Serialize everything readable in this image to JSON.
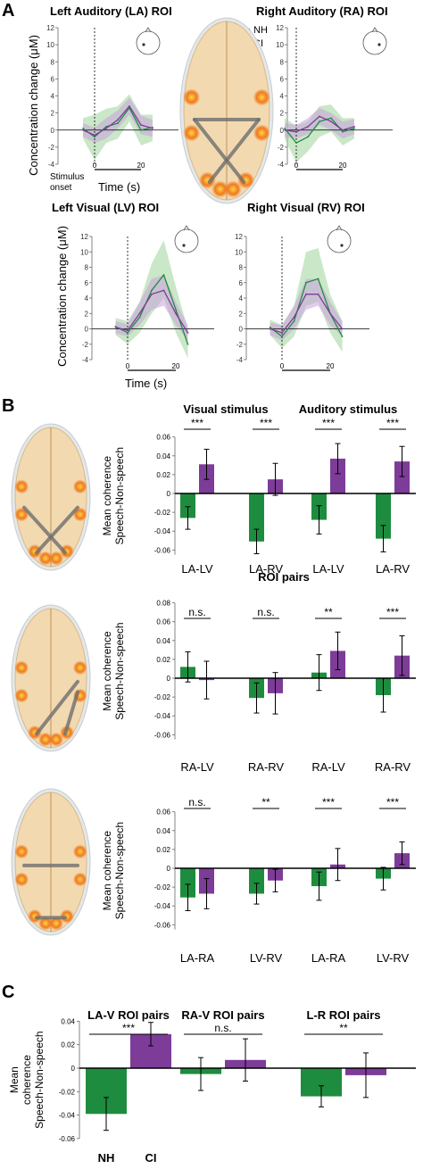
{
  "panel_labels": {
    "a": "A",
    "b": "B",
    "c": "C"
  },
  "colors": {
    "nh": "#1e8c3e",
    "ci": "#7d3c98",
    "nh_band": "#9fd39a",
    "ci_band": "#c9a3dd",
    "mean_band": "#9a9a9a",
    "brain": "#f2d9b0",
    "hotspot": "#f07a1e"
  },
  "icons": [
    "brain-render-icon",
    "head-sensor-icon"
  ],
  "panelA": {
    "ylabel": "Concentration change (μM)",
    "xlabel": "Time (s)",
    "stim_label_1": "Stimulus",
    "stim_label_2": "onset",
    "legend": {
      "nh": "NH",
      "ci": "CI"
    },
    "plots": [
      {
        "title": "Left Auditory (LA) ROI",
        "yticks": [
          "12",
          "10",
          "8",
          "6",
          "4",
          "2",
          "0",
          "-2",
          "-4"
        ],
        "xtick_a": "0",
        "xtick_b": "20"
      },
      {
        "title": "Right Auditory (RA) ROI",
        "yticks": [
          "12",
          "10",
          "8",
          "6",
          "4",
          "2",
          "0",
          "-2",
          "-4"
        ],
        "xtick_a": "0",
        "xtick_b": "20"
      },
      {
        "title": "Left Visual (LV) ROI",
        "yticks": [
          "12",
          "10",
          "8",
          "6",
          "4",
          "2",
          "0",
          "-2",
          "-4"
        ],
        "xtick_a": "0",
        "xtick_b": "20"
      },
      {
        "title": "Right Visual (RV) ROI",
        "yticks": [
          "12",
          "10",
          "8",
          "6",
          "4",
          "2",
          "0",
          "-2",
          "-4"
        ],
        "xtick_a": "0",
        "xtick_b": "20"
      }
    ]
  },
  "panelB": {
    "ylabel_1": "Mean coherence",
    "ylabel_2": "Speech-Non-speech",
    "header_visual": "Visual stimulus",
    "header_auditory": "Auditory stimulus",
    "roi_pairs_label": "ROI pairs",
    "charts": [
      {
        "yticks": [
          "0.06",
          "0.04",
          "0.02",
          "0",
          "-0.02",
          "-0.04",
          "-0.06"
        ],
        "categories": [
          "LA-LV",
          "LA-RV",
          "LA-LV",
          "LA-RV"
        ],
        "sig": [
          "***",
          "***",
          "***",
          "***"
        ]
      },
      {
        "yticks": [
          "0.08",
          "0.06",
          "0.04",
          "0.02",
          "0",
          "-0.02",
          "-0.04",
          "-0.06"
        ],
        "categories": [
          "RA-LV",
          "RA-RV",
          "RA-LV",
          "RA-RV"
        ],
        "sig": [
          "n.s.",
          "n.s.",
          "**",
          "***"
        ]
      },
      {
        "yticks": [
          "0.06",
          "0.04",
          "0.02",
          "0",
          "-0.02",
          "-0.04",
          "-0.06"
        ],
        "categories": [
          "LA-RA",
          "LV-RV",
          "LA-RA",
          "LV-RV"
        ],
        "sig": [
          "n.s.",
          "**",
          "***",
          "***"
        ]
      }
    ]
  },
  "panelC": {
    "ylabel_1": "Mean",
    "ylabel_2": "coherence",
    "ylabel_3": "Speech-Non-speech",
    "yticks": [
      "0.04",
      "0.02",
      "0",
      "-0.02",
      "-0.04",
      "-0.06"
    ],
    "groups": [
      "LA-V ROI pairs",
      "RA-V ROI pairs",
      "L-R ROI pairs"
    ],
    "sig": [
      "***",
      "n.s.",
      "**"
    ],
    "xlabels": [
      "NH",
      "CI"
    ]
  },
  "chart_data": [
    {
      "type": "line",
      "title": "Left Auditory (LA) ROI",
      "xlabel": "Time (s)",
      "ylabel": "Concentration change (μM)",
      "ylim": [
        -4,
        12
      ],
      "x": [
        -5,
        0,
        5,
        10,
        15,
        20,
        25
      ],
      "series": [
        {
          "name": "NH",
          "values": [
            0.2,
            -0.8,
            0.4,
            0.8,
            2.6,
            0.0,
            0.3
          ],
          "ci_low": [
            -1.0,
            -3.5,
            -1.5,
            -1.0,
            1.0,
            -1.8,
            -1.3
          ],
          "ci_high": [
            1.4,
            1.8,
            2.5,
            2.8,
            4.2,
            1.8,
            1.8
          ]
        },
        {
          "name": "CI",
          "values": [
            0.0,
            -0.6,
            0.2,
            1.2,
            2.8,
            0.6,
            0.2
          ],
          "ci_low": [
            -0.8,
            -1.5,
            -1.0,
            0.2,
            1.8,
            -0.5,
            -0.8
          ],
          "ci_high": [
            0.8,
            0.3,
            1.4,
            2.3,
            3.8,
            1.7,
            1.2
          ]
        }
      ]
    },
    {
      "type": "line",
      "title": "Right Auditory (RA) ROI",
      "xlabel": "Time (s)",
      "ylabel": "Concentration change (μM)",
      "ylim": [
        -4,
        12
      ],
      "x": [
        -5,
        0,
        5,
        10,
        15,
        20,
        25
      ],
      "series": [
        {
          "name": "NH",
          "values": [
            0.2,
            -1.5,
            -0.8,
            1.0,
            1.4,
            -0.2,
            0.2
          ],
          "ci_low": [
            -1.0,
            -3.8,
            -2.5,
            -0.8,
            -0.2,
            -1.8,
            -1.0
          ],
          "ci_high": [
            1.4,
            0.5,
            1.0,
            2.8,
            3.0,
            1.4,
            1.4
          ]
        },
        {
          "name": "CI",
          "values": [
            0.0,
            -0.2,
            0.4,
            1.6,
            1.0,
            0.0,
            0.4
          ],
          "ci_low": [
            -0.8,
            -1.0,
            -0.5,
            0.6,
            0.0,
            -1.0,
            -0.5
          ],
          "ci_high": [
            0.8,
            0.6,
            1.4,
            2.6,
            2.0,
            1.0,
            1.3
          ]
        }
      ]
    },
    {
      "type": "line",
      "title": "Left Visual (LV) ROI",
      "xlabel": "Time (s)",
      "ylabel": "Concentration change (μM)",
      "ylim": [
        -4,
        12
      ],
      "x": [
        -5,
        0,
        5,
        10,
        15,
        20,
        25
      ],
      "series": [
        {
          "name": "NH",
          "values": [
            0.3,
            -0.5,
            1.5,
            5.0,
            7.0,
            2.5,
            -2.0
          ],
          "ci_low": [
            -0.8,
            -2.0,
            -0.5,
            2.0,
            4.0,
            -0.5,
            -3.8
          ],
          "ci_high": [
            1.4,
            1.0,
            3.5,
            8.5,
            11.5,
            5.5,
            0.0
          ]
        },
        {
          "name": "CI",
          "values": [
            0.2,
            -0.2,
            2.0,
            4.5,
            5.0,
            2.0,
            -0.5
          ],
          "ci_low": [
            -0.6,
            -1.0,
            0.5,
            2.5,
            3.0,
            0.5,
            -1.5
          ],
          "ci_high": [
            1.0,
            0.6,
            3.5,
            6.5,
            7.0,
            3.5,
            0.5
          ]
        }
      ]
    },
    {
      "type": "line",
      "title": "Right Visual (RV) ROI",
      "xlabel": "",
      "ylabel": "",
      "ylim": [
        -4,
        12
      ],
      "x": [
        -5,
        0,
        5,
        10,
        15,
        20,
        25
      ],
      "series": [
        {
          "name": "NH",
          "values": [
            0.2,
            -1.0,
            1.0,
            6.0,
            6.5,
            2.0,
            -1.0
          ],
          "ci_low": [
            -0.8,
            -2.5,
            -1.0,
            3.0,
            3.5,
            -0.5,
            -3.0
          ],
          "ci_high": [
            1.2,
            0.5,
            3.0,
            10.0,
            10.5,
            4.5,
            1.0
          ]
        },
        {
          "name": "CI",
          "values": [
            0.0,
            -0.5,
            1.5,
            4.5,
            4.5,
            2.0,
            0.0
          ],
          "ci_low": [
            -0.8,
            -1.5,
            0.0,
            2.5,
            3.0,
            0.5,
            -1.0
          ],
          "ci_high": [
            0.8,
            0.5,
            3.0,
            6.5,
            6.5,
            3.5,
            1.0
          ]
        }
      ]
    },
    {
      "type": "bar",
      "xlabel": "",
      "ylabel": "Mean coherence Speech-Non-speech",
      "ylim": [
        -0.065,
        0.065
      ],
      "categories": [
        "LA-LV",
        "LA-RV",
        "LA-LV",
        "LA-RV"
      ],
      "series": [
        {
          "name": "NH",
          "values": [
            -0.026,
            -0.051,
            -0.028,
            -0.048
          ],
          "err": [
            0.012,
            0.013,
            0.015,
            0.014
          ]
        },
        {
          "name": "CI",
          "values": [
            0.031,
            0.015,
            0.037,
            0.034
          ],
          "err": [
            0.016,
            0.017,
            0.016,
            0.016
          ]
        }
      ]
    },
    {
      "type": "bar",
      "xlabel": "",
      "ylabel": "Mean coherence Speech-Non-speech",
      "ylim": [
        -0.07,
        0.085
      ],
      "categories": [
        "RA-LV",
        "RA-RV",
        "RA-LV",
        "RA-RV"
      ],
      "series": [
        {
          "name": "NH",
          "values": [
            0.012,
            -0.021,
            0.006,
            -0.018
          ],
          "err": [
            0.016,
            0.016,
            0.019,
            0.018
          ]
        },
        {
          "name": "CI",
          "values": [
            -0.002,
            -0.016,
            0.029,
            0.024
          ],
          "err": [
            0.02,
            0.022,
            0.02,
            0.021
          ]
        }
      ]
    },
    {
      "type": "bar",
      "xlabel": "",
      "ylabel": "Mean coherence Speech-Non-speech",
      "ylim": [
        -0.065,
        0.065
      ],
      "categories": [
        "LA-RA",
        "LV-RV",
        "LA-RA",
        "LV-RV"
      ],
      "series": [
        {
          "name": "NH",
          "values": [
            -0.031,
            -0.027,
            -0.019,
            -0.011
          ],
          "err": [
            0.014,
            0.011,
            0.015,
            0.012
          ]
        },
        {
          "name": "CI",
          "values": [
            -0.027,
            -0.013,
            0.004,
            0.016
          ],
          "err": [
            0.016,
            0.012,
            0.017,
            0.012
          ]
        }
      ]
    },
    {
      "type": "bar",
      "xlabel": "",
      "ylabel": "Mean coherence Speech-Non-speech",
      "ylim": [
        -0.06,
        0.04
      ],
      "categories": [
        "LA-V ROI pairs",
        "RA-V ROI pairs",
        "L-R ROI pairs"
      ],
      "series": [
        {
          "name": "NH",
          "values": [
            -0.039,
            -0.005,
            -0.024
          ],
          "err": [
            0.014,
            0.014,
            0.009
          ]
        },
        {
          "name": "CI",
          "values": [
            0.029,
            0.007,
            -0.006
          ],
          "err": [
            0.01,
            0.018,
            0.019
          ]
        }
      ]
    }
  ]
}
